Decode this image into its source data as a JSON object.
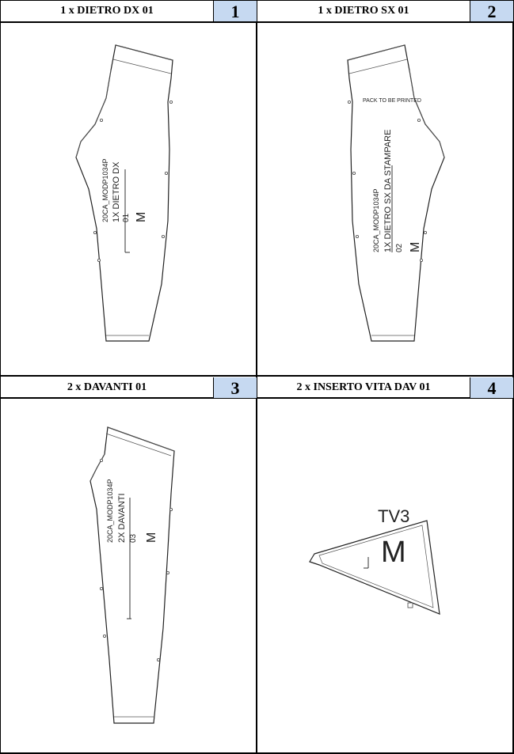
{
  "panels": [
    {
      "title": "1 x DIETRO DX 01",
      "number": "1",
      "labels": {
        "code": "20CA_MODP1034P",
        "piece": "1X DIETRO DX",
        "id": "01",
        "size": "M"
      }
    },
    {
      "title": "1 x DIETRO SX 01",
      "number": "2",
      "note": "PACK TO BE PRINTED",
      "labels": {
        "code": "20CA_MODP1034P",
        "piece": "1X DIETRO SX DA STAMPARE",
        "id": "02",
        "size": "M"
      }
    },
    {
      "title": "2 x DAVANTI 01",
      "number": "3",
      "labels": {
        "code": "20CA_MODP1034P",
        "piece": "2X DAVANTI",
        "id": "03",
        "size": "M"
      }
    },
    {
      "title": "2 x INSERTO VITA DAV 01",
      "number": "4",
      "labels": {
        "code": "TV3",
        "size": "M"
      }
    }
  ]
}
